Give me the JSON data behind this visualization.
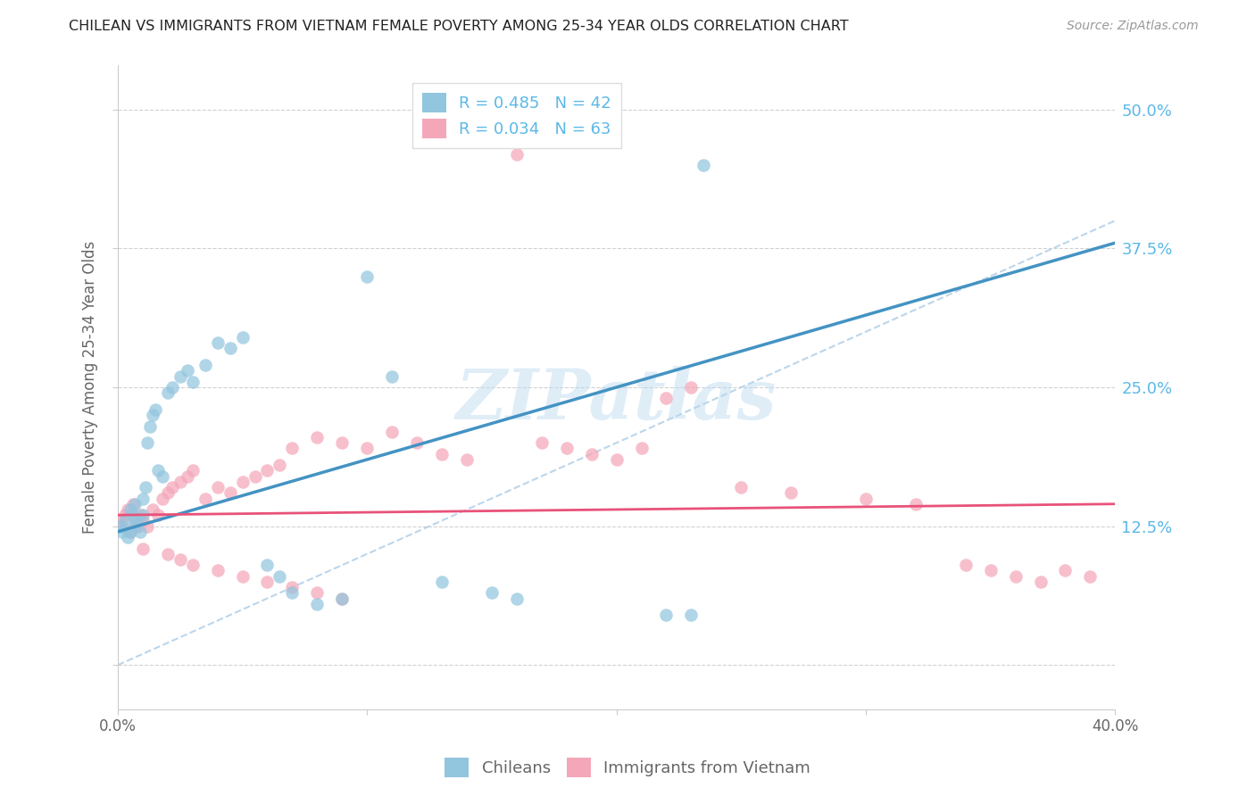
{
  "title": "CHILEAN VS IMMIGRANTS FROM VIETNAM FEMALE POVERTY AMONG 25-34 YEAR OLDS CORRELATION CHART",
  "source": "Source: ZipAtlas.com",
  "ylabel": "Female Poverty Among 25-34 Year Olds",
  "xlim": [
    0.0,
    0.4
  ],
  "ylim": [
    -0.04,
    0.54
  ],
  "ytick_vals": [
    0.0,
    0.125,
    0.25,
    0.375,
    0.5
  ],
  "ytick_labels": [
    "",
    "12.5%",
    "25.0%",
    "37.5%",
    "50.0%"
  ],
  "xtick_vals": [
    0.0,
    0.4
  ],
  "xtick_labels": [
    "0.0%",
    "40.0%"
  ],
  "legend_label1": "Chileans",
  "legend_label2": "Immigrants from Vietnam",
  "R1": 0.485,
  "N1": 42,
  "R2": 0.034,
  "N2": 63,
  "color_blue": "#92c5de",
  "color_pink": "#f4a7b9",
  "color_blue_line": "#4393c3",
  "color_pink_line": "#d6604d",
  "color_diag": "#b0cfe8",
  "background": "#ffffff",
  "grid_color": "#cccccc",
  "chilean_x": [
    0.001,
    0.002,
    0.003,
    0.004,
    0.005,
    0.005,
    0.006,
    0.007,
    0.007,
    0.008,
    0.009,
    0.01,
    0.01,
    0.011,
    0.012,
    0.013,
    0.014,
    0.015,
    0.016,
    0.018,
    0.02,
    0.022,
    0.025,
    0.028,
    0.03,
    0.035,
    0.04,
    0.045,
    0.05,
    0.06,
    0.065,
    0.07,
    0.08,
    0.09,
    0.1,
    0.11,
    0.13,
    0.15,
    0.16,
    0.22,
    0.23,
    0.235
  ],
  "chilean_y": [
    0.125,
    0.12,
    0.13,
    0.115,
    0.14,
    0.12,
    0.135,
    0.125,
    0.145,
    0.13,
    0.12,
    0.15,
    0.135,
    0.16,
    0.2,
    0.215,
    0.225,
    0.23,
    0.175,
    0.17,
    0.245,
    0.25,
    0.26,
    0.265,
    0.255,
    0.27,
    0.29,
    0.285,
    0.295,
    0.09,
    0.08,
    0.065,
    0.055,
    0.06,
    0.35,
    0.26,
    0.075,
    0.065,
    0.06,
    0.045,
    0.045,
    0.45
  ],
  "vietnam_x": [
    0.001,
    0.002,
    0.003,
    0.004,
    0.005,
    0.006,
    0.007,
    0.008,
    0.009,
    0.01,
    0.012,
    0.014,
    0.016,
    0.018,
    0.02,
    0.022,
    0.025,
    0.028,
    0.03,
    0.035,
    0.04,
    0.045,
    0.05,
    0.055,
    0.06,
    0.065,
    0.07,
    0.08,
    0.09,
    0.1,
    0.11,
    0.12,
    0.13,
    0.14,
    0.15,
    0.16,
    0.17,
    0.18,
    0.19,
    0.2,
    0.21,
    0.22,
    0.23,
    0.25,
    0.27,
    0.3,
    0.32,
    0.34,
    0.35,
    0.36,
    0.37,
    0.38,
    0.39,
    0.01,
    0.02,
    0.025,
    0.03,
    0.04,
    0.05,
    0.06,
    0.07,
    0.08,
    0.09
  ],
  "vietnam_y": [
    0.13,
    0.125,
    0.135,
    0.14,
    0.12,
    0.145,
    0.13,
    0.125,
    0.135,
    0.13,
    0.125,
    0.14,
    0.135,
    0.15,
    0.155,
    0.16,
    0.165,
    0.17,
    0.175,
    0.15,
    0.16,
    0.155,
    0.165,
    0.17,
    0.175,
    0.18,
    0.195,
    0.205,
    0.2,
    0.195,
    0.21,
    0.2,
    0.19,
    0.185,
    0.48,
    0.46,
    0.2,
    0.195,
    0.19,
    0.185,
    0.195,
    0.24,
    0.25,
    0.16,
    0.155,
    0.15,
    0.145,
    0.09,
    0.085,
    0.08,
    0.075,
    0.085,
    0.08,
    0.105,
    0.1,
    0.095,
    0.09,
    0.085,
    0.08,
    0.075,
    0.07,
    0.065,
    0.06
  ]
}
